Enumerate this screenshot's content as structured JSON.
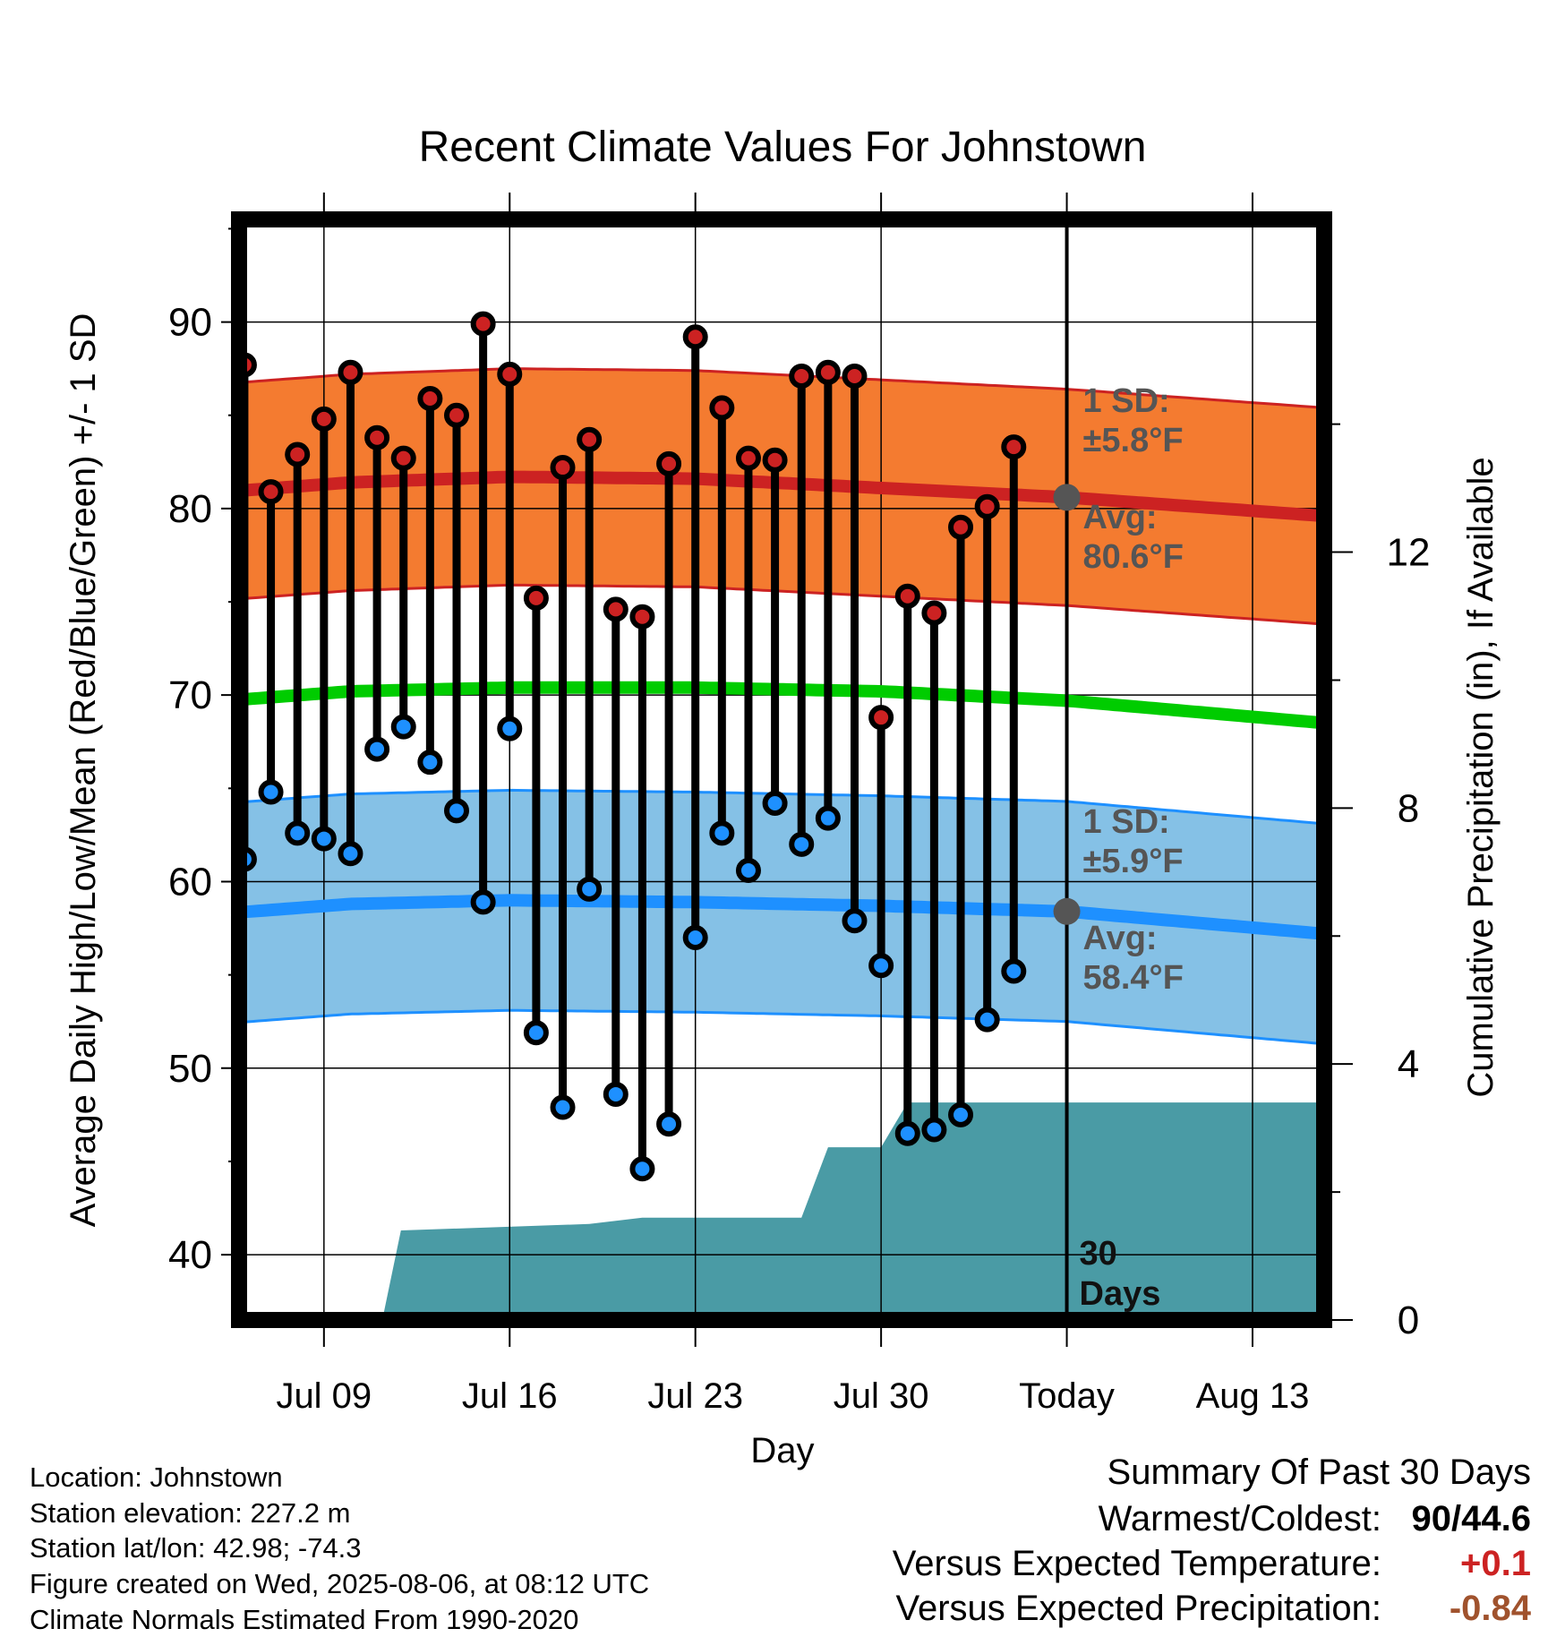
{
  "chart_data": {
    "type": "line",
    "title": "Recent Climate Values For Johnstown",
    "xlabel": "Day",
    "ylabel": "Average Daily High/Low/Mean (Red/Blue/Green) +/- 1 SD",
    "y2label": "Cumulative Precipitation (in), If Available",
    "ylim": [
      36.5,
      95.5
    ],
    "y2lim": [
      0,
      17.2
    ],
    "yticks": [
      40,
      50,
      60,
      70,
      80,
      90
    ],
    "y2ticks": [
      0,
      4,
      8,
      12
    ],
    "xticks": [
      {
        "day": 9,
        "label": "Jul 09"
      },
      {
        "day": 16,
        "label": "Jul 16"
      },
      {
        "day": 23,
        "label": "Jul 23"
      },
      {
        "day": 30,
        "label": "Jul 30"
      },
      {
        "day": 37,
        "label": "Today"
      },
      {
        "day": 44,
        "label": "Aug 13"
      }
    ],
    "xlim": [
      5.8,
      46.7
    ],
    "today_day": 37,
    "days": [
      6,
      7,
      8,
      9,
      10,
      11,
      12,
      13,
      14,
      15,
      16,
      17,
      18,
      19,
      20,
      21,
      22,
      23,
      24,
      25,
      26,
      27,
      28,
      29,
      30,
      31,
      32,
      33,
      34,
      35,
      36
    ],
    "series": [
      {
        "name": "High",
        "color": "#cc2222",
        "values": [
          87.7,
          80.9,
          82.9,
          84.8,
          87.3,
          83.8,
          82.7,
          85.9,
          85.0,
          89.9,
          87.2,
          75.2,
          82.2,
          83.7,
          74.6,
          74.2,
          82.4,
          89.2,
          85.4,
          82.7,
          82.6,
          87.1,
          87.3,
          87.1,
          68.8,
          75.3,
          74.4,
          79.0,
          80.1,
          83.3,
          null
        ]
      },
      {
        "name": "Low",
        "color": "#1e90ff",
        "values": [
          61.2,
          64.8,
          62.6,
          62.3,
          61.5,
          67.1,
          68.3,
          66.4,
          63.8,
          58.9,
          68.2,
          51.9,
          47.9,
          59.6,
          48.6,
          44.6,
          47.0,
          57.0,
          62.6,
          60.6,
          64.2,
          62.0,
          63.4,
          57.9,
          55.5,
          46.5,
          46.7,
          47.5,
          52.6,
          55.2,
          null
        ]
      }
    ],
    "normals": {
      "days": [
        5.3,
        10,
        16,
        23,
        30,
        37,
        46.7
      ],
      "high_mean": [
        80.9,
        81.4,
        81.7,
        81.6,
        81.1,
        80.6,
        79.6
      ],
      "high_sd": 5.8,
      "low_mean": [
        58.3,
        58.8,
        59.0,
        58.9,
        58.7,
        58.4,
        57.2
      ],
      "low_sd": 5.9,
      "mean": [
        69.7,
        70.2,
        70.4,
        70.4,
        70.2,
        69.7,
        68.5
      ]
    },
    "precip": {
      "color": "#4a9ba5",
      "points": [
        [
          11.2,
          0
        ],
        [
          11.9,
          1.4
        ],
        [
          19,
          1.5
        ],
        [
          21,
          1.6
        ],
        [
          27,
          1.6
        ],
        [
          28,
          2.7
        ],
        [
          30,
          2.7
        ],
        [
          31,
          3.4
        ],
        [
          46.7,
          3.4
        ]
      ]
    },
    "annotations": {
      "high_sd": "1 SD:",
      "high_sd_val": "±5.8°F",
      "high_avg": "Avg:",
      "high_avg_val": "80.6°F",
      "low_sd": "1 SD:",
      "low_sd_val": "±5.9°F",
      "low_avg": "Avg:",
      "low_avg_val": "58.4°F",
      "days": "30",
      "days_label": "Days"
    },
    "colors": {
      "high_band": "#f47b30",
      "high_line": "#cc2222",
      "low_band": "#85c1e6",
      "low_line": "#1e90ff",
      "mean_line": "#00cc00",
      "annotation_text": "#555555"
    }
  },
  "info": {
    "location": "Location: Johnstown",
    "elevation": "Station elevation: 227.2 m",
    "latlon": "Station lat/lon: 42.98; -74.3",
    "created": "Figure created on Wed, 2025-08-06, at 08:12 UTC",
    "normals": "Climate Normals Estimated From 1990-2020"
  },
  "summary": {
    "title": "Summary Of Past 30 Days",
    "warm_label": "Warmest/Coldest:",
    "warm_value": "90/44.6",
    "temp_label": "Versus Expected Temperature:",
    "temp_value": "+0.1",
    "temp_color": "#cc2222",
    "precip_label": "Versus Expected Precipitation:",
    "precip_value": "-0.84",
    "precip_color": "#a0522d"
  }
}
